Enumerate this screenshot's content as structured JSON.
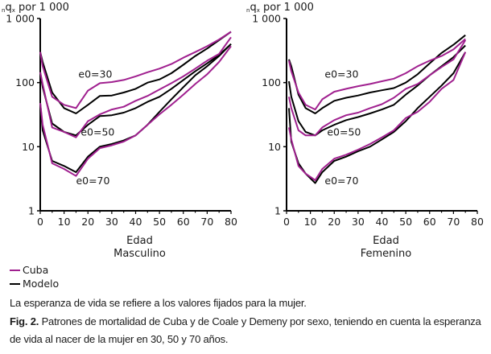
{
  "chart_data": [
    {
      "type": "line",
      "title": "",
      "ylabel_prefix": "n",
      "ylabel_main": "q",
      "ylabel_sub": "x",
      "ylabel_rest": " por 1 000",
      "xlabel": "Edad",
      "subtitle": "Masculino",
      "yscale": "log",
      "ylim": [
        1,
        1000
      ],
      "xlim": [
        0,
        80
      ],
      "yticks": [
        {
          "v": 1,
          "label": "1"
        },
        {
          "v": 10,
          "label": "10"
        },
        {
          "v": 100,
          "label": "100"
        },
        {
          "v": 1000,
          "label": "1 000"
        }
      ],
      "xticks": [
        0,
        10,
        20,
        30,
        40,
        50,
        60,
        70,
        80
      ],
      "annotations": [
        {
          "text": "e0=30",
          "x": 16,
          "y": 120
        },
        {
          "text": "e0=50",
          "x": 17,
          "y": 15
        },
        {
          "text": "e0=70",
          "x": 15,
          "y": 2.6
        }
      ],
      "series": [
        {
          "name": "Cuba",
          "group": "e0=30",
          "x": [
            0,
            1,
            5,
            10,
            15,
            20,
            25,
            30,
            35,
            40,
            45,
            50,
            55,
            60,
            65,
            70,
            75,
            80
          ],
          "y": [
            300,
            180,
            60,
            45,
            40,
            75,
            98,
            102,
            110,
            125,
            145,
            165,
            195,
            245,
            300,
            370,
            470,
            620
          ]
        },
        {
          "name": "Modelo",
          "group": "e0=30",
          "x": [
            0,
            1,
            5,
            10,
            15,
            20,
            25,
            30,
            35,
            40,
            45,
            50,
            55,
            60,
            65,
            70,
            75,
            80
          ],
          "y": [
            300,
            210,
            70,
            40,
            33,
            45,
            62,
            63,
            70,
            80,
            100,
            112,
            140,
            190,
            260,
            340,
            460,
            620
          ]
        },
        {
          "name": "Cuba",
          "group": "e0=50",
          "x": [
            0,
            1,
            5,
            10,
            15,
            20,
            25,
            30,
            35,
            40,
            45,
            50,
            55,
            60,
            65,
            70,
            75,
            80
          ],
          "y": [
            145,
            95,
            20,
            17,
            14,
            25,
            32,
            38,
            42,
            52,
            62,
            78,
            98,
            125,
            165,
            220,
            280,
            510
          ]
        },
        {
          "name": "Modelo",
          "group": "e0=50",
          "x": [
            0,
            1,
            5,
            10,
            15,
            20,
            25,
            30,
            35,
            40,
            45,
            50,
            55,
            60,
            65,
            70,
            75,
            80
          ],
          "y": [
            145,
            85,
            23,
            17,
            15,
            22,
            30,
            31,
            34,
            40,
            50,
            60,
            80,
            110,
            150,
            200,
            270,
            400
          ]
        },
        {
          "name": "Cuba",
          "group": "e0=70",
          "x": [
            0,
            1,
            5,
            10,
            15,
            20,
            25,
            30,
            35,
            40,
            45,
            50,
            55,
            60,
            65,
            70,
            75,
            80
          ],
          "y": [
            48,
            22,
            5.5,
            4.5,
            3.5,
            6.5,
            9.5,
            10.5,
            12,
            15,
            22,
            32,
            45,
            65,
            95,
            135,
            210,
            370
          ]
        },
        {
          "name": "Modelo",
          "group": "e0=70",
          "x": [
            0,
            1,
            5,
            10,
            15,
            20,
            25,
            30,
            35,
            40,
            45,
            50,
            55,
            60,
            65,
            70,
            75,
            80
          ],
          "y": [
            48,
            18,
            6,
            5,
            4,
            7,
            10,
            11,
            12.5,
            15,
            22,
            35,
            55,
            85,
            130,
            180,
            260,
            400
          ]
        }
      ]
    },
    {
      "type": "line",
      "title": "",
      "ylabel_prefix": "n",
      "ylabel_main": "q",
      "ylabel_sub": "x",
      "ylabel_rest": " por 1 000",
      "xlabel": "Edad",
      "subtitle": "Femenino",
      "yscale": "log",
      "ylim": [
        1,
        1000
      ],
      "xlim": [
        0,
        80
      ],
      "yticks": [
        {
          "v": 1,
          "label": "1"
        },
        {
          "v": 10,
          "label": "10"
        },
        {
          "v": 100,
          "label": "100"
        },
        {
          "v": 1000,
          "label": "1 000"
        }
      ],
      "xticks": [
        0,
        10,
        20,
        30,
        40,
        50,
        60,
        70,
        80
      ],
      "annotations": [
        {
          "text": "e0=30",
          "x": 16,
          "y": 120
        },
        {
          "text": "e0=50",
          "x": 17,
          "y": 15
        },
        {
          "text": "e0=70",
          "x": 16,
          "y": 2.6
        }
      ],
      "series": [
        {
          "name": "Cuba",
          "group": "e0=30",
          "x": [
            1,
            2,
            5,
            8,
            12,
            15,
            20,
            25,
            30,
            35,
            40,
            45,
            50,
            55,
            60,
            65,
            70,
            75
          ],
          "y": [
            220,
            150,
            70,
            45,
            38,
            55,
            72,
            80,
            88,
            95,
            105,
            115,
            140,
            180,
            220,
            260,
            330,
            480
          ]
        },
        {
          "name": "Modelo",
          "group": "e0=30",
          "x": [
            1,
            2,
            5,
            8,
            12,
            15,
            20,
            25,
            30,
            35,
            40,
            45,
            50,
            55,
            60,
            65,
            70,
            75
          ],
          "y": [
            230,
            180,
            65,
            40,
            33,
            40,
            52,
            58,
            63,
            70,
            76,
            82,
            100,
            135,
            200,
            290,
            390,
            550
          ]
        },
        {
          "name": "Cuba",
          "group": "e0=50",
          "x": [
            1,
            2,
            5,
            8,
            12,
            15,
            20,
            25,
            30,
            35,
            40,
            45,
            50,
            55,
            60,
            65,
            70,
            75
          ],
          "y": [
            60,
            40,
            18,
            15,
            15,
            20,
            26,
            31,
            34,
            40,
            46,
            58,
            80,
            95,
            130,
            175,
            230,
            460
          ]
        },
        {
          "name": "Modelo",
          "group": "e0=50",
          "x": [
            1,
            2,
            5,
            8,
            12,
            15,
            20,
            25,
            30,
            35,
            40,
            45,
            50,
            55,
            60,
            65,
            70,
            75
          ],
          "y": [
            105,
            60,
            25,
            17,
            15,
            18,
            22,
            26,
            29,
            33,
            38,
            45,
            65,
            90,
            130,
            180,
            250,
            380
          ]
        },
        {
          "name": "Cuba",
          "group": "e0=70",
          "x": [
            1,
            2,
            5,
            8,
            12,
            15,
            20,
            25,
            30,
            35,
            40,
            45,
            50,
            55,
            60,
            65,
            70,
            75
          ],
          "y": [
            20,
            13,
            5,
            3.8,
            3,
            4.5,
            6.5,
            7.5,
            9,
            11,
            14,
            18,
            28,
            35,
            50,
            80,
            110,
            300
          ]
        },
        {
          "name": "Modelo",
          "group": "e0=70",
          "x": [
            1,
            2,
            5,
            8,
            12,
            15,
            20,
            25,
            30,
            35,
            40,
            45,
            50,
            55,
            60,
            65,
            70,
            75
          ],
          "y": [
            40,
            12,
            5.5,
            3.8,
            2.7,
            4,
            6,
            7,
            8.5,
            10,
            13,
            17,
            25,
            40,
            60,
            90,
            140,
            300
          ]
        }
      ]
    }
  ],
  "legend": {
    "items": [
      {
        "label": "Cuba",
        "color": "#a0208f"
      },
      {
        "label": "Modelo",
        "color": "#000000"
      }
    ]
  },
  "colors": {
    "Cuba": "#a0208f",
    "Modelo": "#000000"
  },
  "notes": {
    "line1": "La esperanza de vida se refiere a los valores fijados para la mujer.",
    "fig_label": "Fig. 2.",
    "caption": " Patrones de mortalidad de Cuba y de Coale y Demeny por sexo, teniendo en cuenta la esperanza de vida al nacer de la mujer en 30, 50 y 70 años."
  }
}
